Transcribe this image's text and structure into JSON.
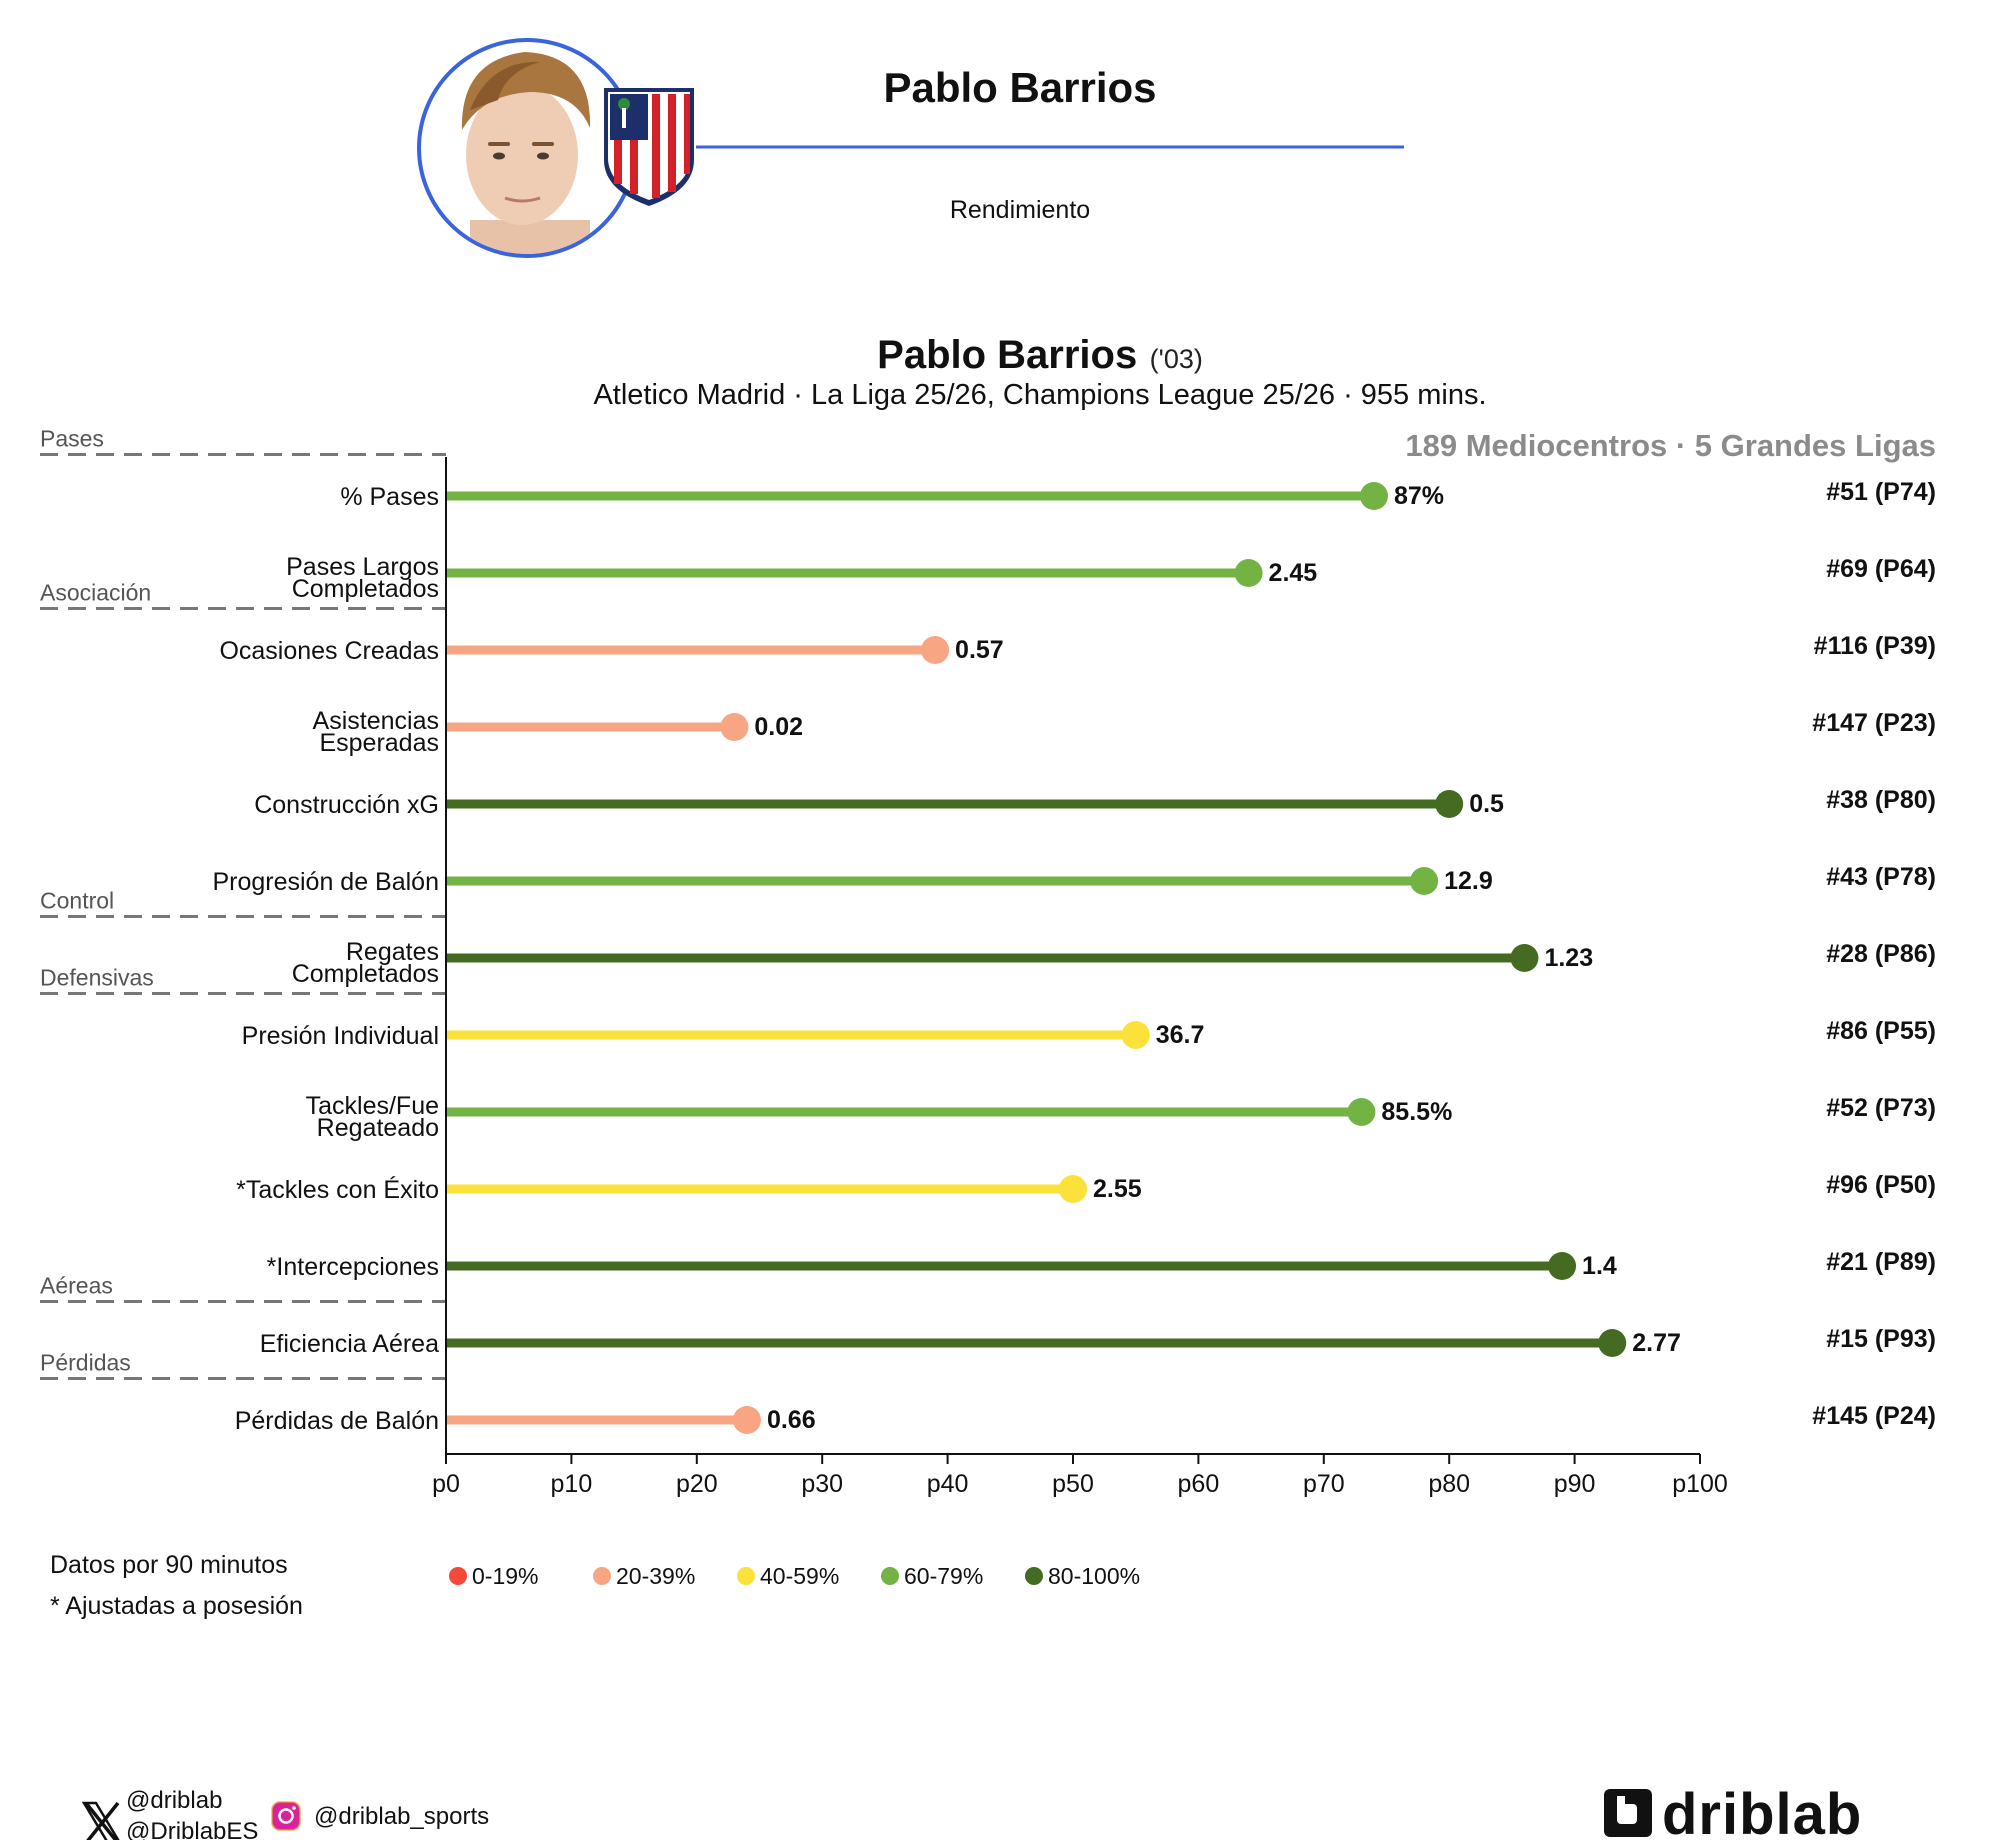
{
  "header": {
    "player_name": "Pablo Barrios",
    "subtitle": "Rendimiento"
  },
  "chart_data": {
    "type": "lollipop",
    "title": "Pablo Barrios",
    "title_year": "('03)",
    "subtitle": "Atletico Madrid · La Liga 25/26, Champions League 25/26 · 955 mins.",
    "comparison": "189 Mediocentros · 5 Grandes Ligas",
    "xlim": [
      0,
      100
    ],
    "x_ticks": [
      "p0",
      "p10",
      "p20",
      "p30",
      "p40",
      "p50",
      "p60",
      "p70",
      "p80",
      "p90",
      "p100"
    ],
    "sections": [
      {
        "label": "Pases",
        "starts_at": 0
      },
      {
        "label": "Asociación",
        "starts_at": 2
      },
      {
        "label": "Control",
        "starts_at": 6
      },
      {
        "label": "Defensivas",
        "starts_at": 7
      },
      {
        "label": "Aéreas",
        "starts_at": 11
      },
      {
        "label": "Pérdidas",
        "starts_at": 12
      }
    ],
    "metrics": [
      {
        "label": [
          "% Pases"
        ],
        "value": "87%",
        "percentile": 74,
        "rank": "#51 (P74)",
        "band": "60-79%"
      },
      {
        "label": [
          "Pases Largos",
          "Completados"
        ],
        "value": "2.45",
        "percentile": 64,
        "rank": "#69 (P64)",
        "band": "60-79%"
      },
      {
        "label": [
          "Ocasiones Creadas"
        ],
        "value": "0.57",
        "percentile": 39,
        "rank": "#116 (P39)",
        "band": "20-39%"
      },
      {
        "label": [
          "Asistencias",
          "Esperadas"
        ],
        "value": "0.02",
        "percentile": 23,
        "rank": "#147 (P23)",
        "band": "20-39%"
      },
      {
        "label": [
          "Construcción xG"
        ],
        "value": "0.5",
        "percentile": 80,
        "rank": "#38 (P80)",
        "band": "80-100%"
      },
      {
        "label": [
          "Progresión de Balón"
        ],
        "value": "12.9",
        "percentile": 78,
        "rank": "#43 (P78)",
        "band": "60-79%"
      },
      {
        "label": [
          "Regates",
          "Completados"
        ],
        "value": "1.23",
        "percentile": 86,
        "rank": "#28 (P86)",
        "band": "80-100%"
      },
      {
        "label": [
          "Presión Individual"
        ],
        "value": "36.7",
        "percentile": 55,
        "rank": "#86 (P55)",
        "band": "40-59%"
      },
      {
        "label": [
          "Tackles/Fue",
          "Regateado"
        ],
        "value": "85.5%",
        "percentile": 73,
        "rank": "#52 (P73)",
        "band": "60-79%"
      },
      {
        "label": [
          "*Tackles con Éxito"
        ],
        "value": "2.55",
        "percentile": 50,
        "rank": "#96 (P50)",
        "band": "40-59%"
      },
      {
        "label": [
          "*Intercepciones"
        ],
        "value": "1.4",
        "percentile": 89,
        "rank": "#21 (P89)",
        "band": "80-100%"
      },
      {
        "label": [
          "Eficiencia Aérea"
        ],
        "value": "2.77",
        "percentile": 93,
        "rank": "#15 (P93)",
        "band": "80-100%"
      },
      {
        "label": [
          "Pérdidas de Balón"
        ],
        "value": "0.66",
        "percentile": 24,
        "rank": "#145 (P24)",
        "band": "20-39%"
      }
    ],
    "legend": [
      {
        "label": "0-19%",
        "color": "#f24a3b"
      },
      {
        "label": "20-39%",
        "color": "#f7a582"
      },
      {
        "label": "40-59%",
        "color": "#fbe13a"
      },
      {
        "label": "60-79%",
        "color": "#72b343"
      },
      {
        "label": "80-100%",
        "color": "#456b22"
      }
    ],
    "notes": [
      "Datos por 90 minutos",
      "* Ajustadas a posesión"
    ]
  },
  "footer": {
    "twitter_handles": [
      "@driblab",
      "@DriblabES"
    ],
    "instagram_handle": "@driblab_sports",
    "brand": "driblab",
    "icons": [
      "x-icon",
      "instagram-icon",
      "driblab-logo"
    ]
  }
}
